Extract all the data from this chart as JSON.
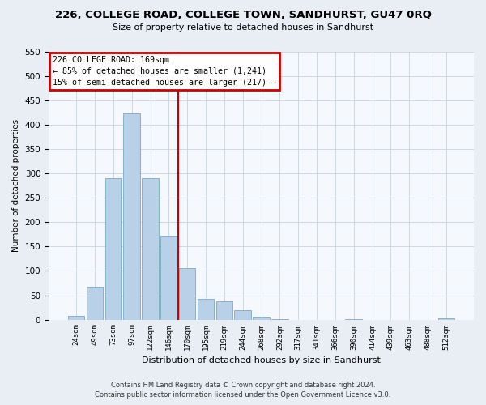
{
  "title": "226, COLLEGE ROAD, COLLEGE TOWN, SANDHURST, GU47 0RQ",
  "subtitle": "Size of property relative to detached houses in Sandhurst",
  "xlabel": "Distribution of detached houses by size in Sandhurst",
  "ylabel": "Number of detached properties",
  "bin_labels": [
    "24sqm",
    "49sqm",
    "73sqm",
    "97sqm",
    "122sqm",
    "146sqm",
    "170sqm",
    "195sqm",
    "219sqm",
    "244sqm",
    "268sqm",
    "292sqm",
    "317sqm",
    "341sqm",
    "366sqm",
    "390sqm",
    "414sqm",
    "439sqm",
    "463sqm",
    "488sqm",
    "512sqm"
  ],
  "bar_values": [
    8,
    68,
    291,
    424,
    291,
    173,
    105,
    43,
    37,
    19,
    6,
    1,
    0,
    0,
    0,
    1,
    0,
    0,
    0,
    0,
    3
  ],
  "bar_color": "#b8d0e8",
  "bar_edge_color": "#7aa8cc",
  "vline_color": "#cc0000",
  "ylim": [
    0,
    550
  ],
  "yticks": [
    0,
    50,
    100,
    150,
    200,
    250,
    300,
    350,
    400,
    450,
    500,
    550
  ],
  "annotation_title": "226 COLLEGE ROAD: 169sqm",
  "annotation_line1": "← 85% of detached houses are smaller (1,241)",
  "annotation_line2": "15% of semi-detached houses are larger (217) →",
  "annotation_box_color": "#ffffff",
  "annotation_box_edge": "#cc0000",
  "footer_line1": "Contains HM Land Registry data © Crown copyright and database right 2024.",
  "footer_line2": "Contains public sector information licensed under the Open Government Licence v3.0.",
  "background_color": "#e8eef4",
  "plot_bg_color": "#f5f8fc"
}
